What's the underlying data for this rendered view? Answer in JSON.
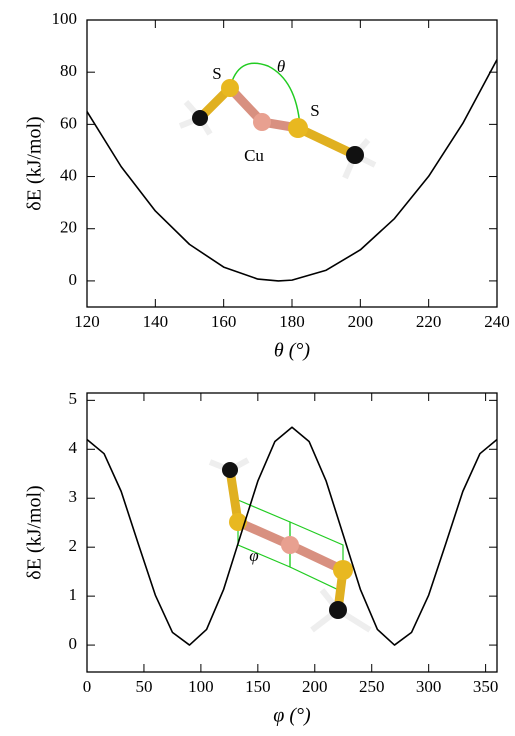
{
  "chart_data": [
    {
      "type": "line",
      "xlabel": "θ (°)",
      "ylabel": "δE (kJ/mol)",
      "x": [
        120,
        130,
        140,
        150,
        160,
        170,
        176,
        180,
        190,
        200,
        210,
        220,
        230,
        240
      ],
      "series": [
        {
          "color": "#000000",
          "values": [
            64.9,
            43.8,
            26.8,
            14.0,
            5.3,
            0.7,
            0,
            0.3,
            4.1,
            11.9,
            23.9,
            40.1,
            60.4,
            84.8
          ]
        }
      ],
      "xlim": [
        120,
        240
      ],
      "ylim": [
        -10,
        100
      ],
      "xticks": [
        120,
        140,
        160,
        180,
        200,
        220,
        240
      ],
      "yticks": [
        0,
        20,
        40,
        60,
        80,
        100
      ],
      "annotations": [
        "S",
        "Cu",
        "S",
        "θ"
      ]
    },
    {
      "type": "line",
      "xlabel": "φ (°)",
      "ylabel": "δE (kJ/mol)",
      "x": [
        0,
        15,
        30,
        45,
        60,
        75,
        90,
        105,
        120,
        135,
        150,
        165,
        180,
        195,
        210,
        225,
        240,
        255,
        270,
        285,
        300,
        315,
        330,
        345,
        360
      ],
      "series": [
        {
          "color": "#000000",
          "values": [
            4.2,
            3.91,
            3.14,
            2.07,
            1.02,
            0.26,
            0,
            0.32,
            1.14,
            2.25,
            3.35,
            4.16,
            4.45,
            4.16,
            3.35,
            2.25,
            1.14,
            0.32,
            0,
            0.26,
            1.02,
            2.07,
            3.14,
            3.91,
            4.2
          ]
        }
      ],
      "xlim": [
        0,
        360
      ],
      "ylim": [
        -0.55,
        5.15
      ],
      "xticks": [
        0,
        50,
        100,
        150,
        200,
        250,
        300,
        350
      ],
      "yticks": [
        0,
        1,
        2,
        3,
        4,
        5
      ],
      "annotations": [
        "φ"
      ]
    }
  ]
}
